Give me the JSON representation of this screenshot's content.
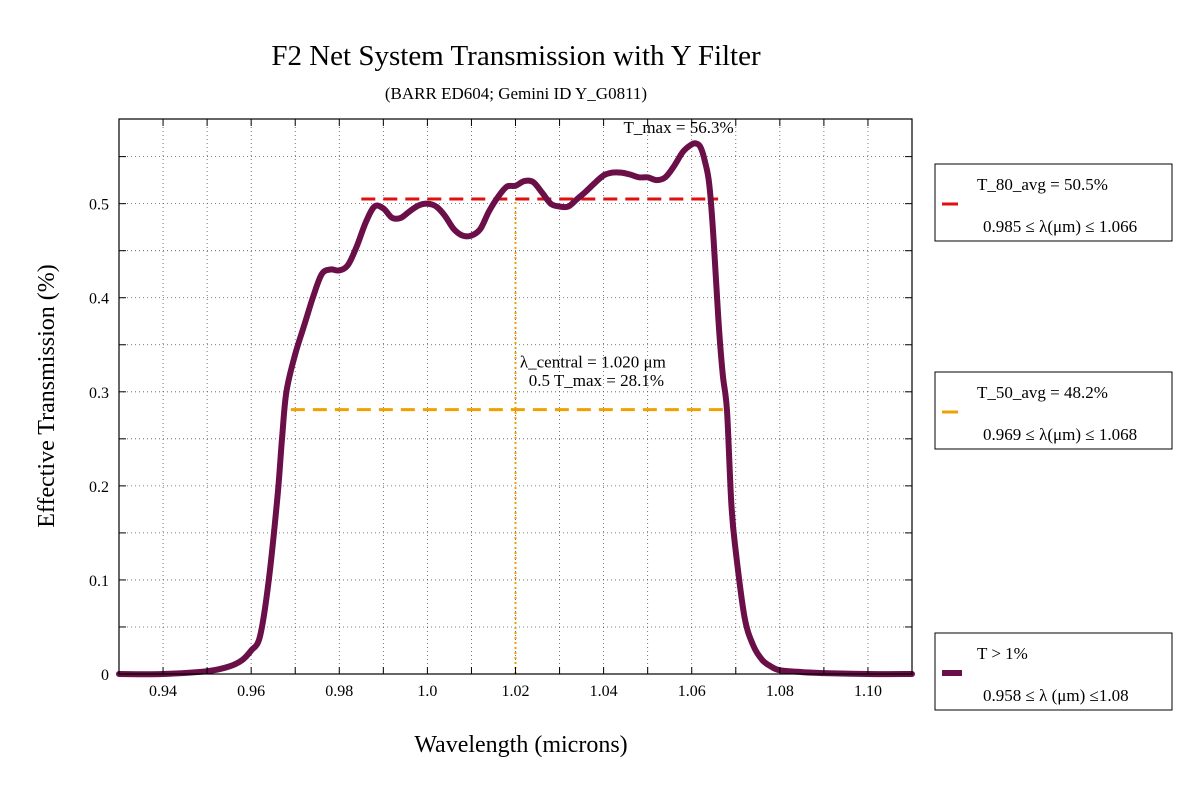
{
  "chart_data": {
    "type": "line",
    "title": "F2 Net System Transmission with Y Filter",
    "subtitle": "(BARR ED604; Gemini ID Y_G0811)",
    "xlabel": "Wavelength (microns)",
    "ylabel": "Effective Transmission (%)",
    "xlim": [
      0.93,
      1.11
    ],
    "ylim": [
      0,
      0.59
    ],
    "grid": true,
    "x_ticks": [
      {
        "value": 0.94,
        "label": "0.94"
      },
      {
        "value": 0.96,
        "label": "0.96"
      },
      {
        "value": 0.98,
        "label": "0.98"
      },
      {
        "value": 1.0,
        "label": "1.0"
      },
      {
        "value": 1.02,
        "label": "1.02"
      },
      {
        "value": 1.04,
        "label": "1.04"
      },
      {
        "value": 1.06,
        "label": "1.06"
      },
      {
        "value": 1.08,
        "label": "1.08"
      },
      {
        "value": 1.1,
        "label": "1.10"
      }
    ],
    "y_ticks": [
      {
        "value": 0,
        "label": "0"
      },
      {
        "value": 0.1,
        "label": "0.1"
      },
      {
        "value": 0.2,
        "label": "0.2"
      },
      {
        "value": 0.3,
        "label": "0.3"
      },
      {
        "value": 0.4,
        "label": "0.4"
      },
      {
        "value": 0.5,
        "label": "0.5"
      }
    ],
    "series": [
      {
        "name": "T > 1%",
        "color": "#6b0f48",
        "x": [
          0.93,
          0.94,
          0.95,
          0.955,
          0.958,
          0.96,
          0.962,
          0.964,
          0.966,
          0.967,
          0.968,
          0.97,
          0.972,
          0.974,
          0.976,
          0.978,
          0.98,
          0.982,
          0.984,
          0.986,
          0.988,
          0.99,
          0.992,
          0.994,
          0.996,
          0.998,
          1.0,
          1.002,
          1.004,
          1.006,
          1.008,
          1.01,
          1.012,
          1.014,
          1.016,
          1.018,
          1.02,
          1.022,
          1.024,
          1.026,
          1.028,
          1.03,
          1.032,
          1.034,
          1.036,
          1.038,
          1.04,
          1.042,
          1.044,
          1.046,
          1.048,
          1.05,
          1.052,
          1.054,
          1.056,
          1.058,
          1.06,
          1.061,
          1.062,
          1.063,
          1.064,
          1.065,
          1.066,
          1.067,
          1.068,
          1.069,
          1.07,
          1.072,
          1.074,
          1.076,
          1.078,
          1.08,
          1.085,
          1.09,
          1.1,
          1.11
        ],
        "values": [
          0.0,
          0.0,
          0.003,
          0.008,
          0.015,
          0.025,
          0.04,
          0.1,
          0.19,
          0.25,
          0.3,
          0.34,
          0.37,
          0.4,
          0.425,
          0.43,
          0.429,
          0.435,
          0.455,
          0.48,
          0.497,
          0.495,
          0.485,
          0.485,
          0.492,
          0.498,
          0.5,
          0.497,
          0.487,
          0.473,
          0.466,
          0.466,
          0.473,
          0.492,
          0.507,
          0.518,
          0.519,
          0.524,
          0.523,
          0.512,
          0.5,
          0.497,
          0.497,
          0.505,
          0.513,
          0.522,
          0.53,
          0.533,
          0.533,
          0.531,
          0.528,
          0.528,
          0.525,
          0.528,
          0.54,
          0.555,
          0.563,
          0.564,
          0.56,
          0.545,
          0.52,
          0.46,
          0.38,
          0.32,
          0.28,
          0.18,
          0.13,
          0.06,
          0.03,
          0.015,
          0.008,
          0.004,
          0.002,
          0.001,
          0.0,
          0.0
        ]
      }
    ],
    "reference_lines": [
      {
        "kind": "horizontal",
        "y": 0.505,
        "x_from": 0.985,
        "x_to": 1.066,
        "color": "#e01010",
        "dash": "dashed"
      },
      {
        "kind": "horizontal",
        "y": 0.281,
        "x_from": 0.969,
        "x_to": 1.068,
        "color": "#f0a000",
        "dash": "dashed"
      },
      {
        "kind": "vertical",
        "x": 1.02,
        "y_from": 0,
        "y_to": 0.505,
        "color": "#f0a000",
        "dash": "dotted"
      }
    ],
    "annotations": [
      {
        "text": "T_max = 56.3%",
        "x": 1.062,
        "y": 0.575
      },
      {
        "text": "λ_central = 1.020 μm",
        "x": 1.021,
        "y": 0.326
      },
      {
        "text": "0.5 T_max = 28.1%",
        "x": 1.023,
        "y": 0.306
      }
    ],
    "legend": {
      "placement": "right",
      "entries": [
        {
          "line1": "T_80_avg = 50.5%",
          "line2": "0.985 ≤ λ(μm) ≤ 1.066",
          "color": "#e01010",
          "style": "dashed"
        },
        {
          "line1": "T_50_avg = 48.2%",
          "line2": "0.969 ≤ λ(μm) ≤ 1.068",
          "color": "#f0a000",
          "style": "dashed"
        },
        {
          "line1": "T > 1%",
          "line2": "0.958 ≤ λ (μm) ≤1.08",
          "color": "#6b0f48",
          "style": "solid"
        }
      ]
    }
  }
}
